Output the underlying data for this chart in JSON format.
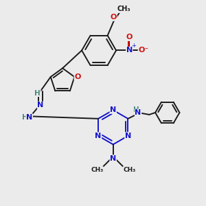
{
  "background_color": "#ebebeb",
  "bond_color": "#1a1a1a",
  "n_color": "#1414cc",
  "o_color": "#cc1414",
  "h_color": "#4a8a7a",
  "figsize": [
    3.0,
    3.0
  ],
  "dpi": 100,
  "xlim": [
    0,
    10
  ],
  "ylim": [
    0,
    10
  ]
}
